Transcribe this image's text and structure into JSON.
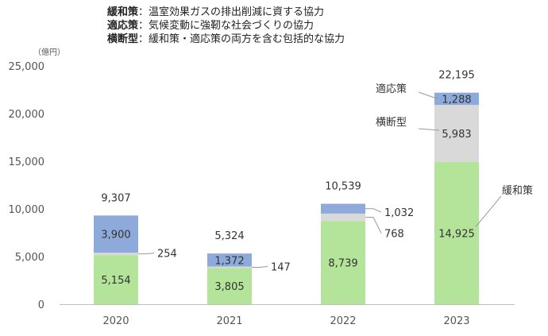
{
  "notes": [
    {
      "key": "緩和策",
      "desc": "：温室効果ガスの排出削減に資する協力"
    },
    {
      "key": "適応策",
      "desc": "：気候変動に強靭な社会づくりの協力"
    },
    {
      "key": "横断型",
      "desc": "：緩和策・適応策の両方を含む包括的な協力"
    }
  ],
  "colors": {
    "mitigation": "#b4e39a",
    "crosscutting": "#d9d9d9",
    "adaptation": "#8eaadb",
    "axis": "#bfbfbf"
  },
  "chart_data": {
    "type": "bar",
    "stacked": true,
    "unit": "（億円）",
    "categories": [
      "2020",
      "2021",
      "2022",
      "2023"
    ],
    "series": [
      {
        "name": "緩和策",
        "values": [
          5154,
          3805,
          8739,
          14925
        ]
      },
      {
        "name": "横断型",
        "values": [
          254,
          147,
          768,
          5983
        ]
      },
      {
        "name": "適応策",
        "values": [
          3900,
          1372,
          1032,
          1288
        ]
      }
    ],
    "totals": [
      9307,
      5324,
      10539,
      22195
    ],
    "ylim": [
      0,
      25000
    ],
    "yticks": [
      0,
      5000,
      10000,
      15000,
      20000,
      25000
    ],
    "grid": false,
    "legend": "callouts-on-last-bar"
  }
}
